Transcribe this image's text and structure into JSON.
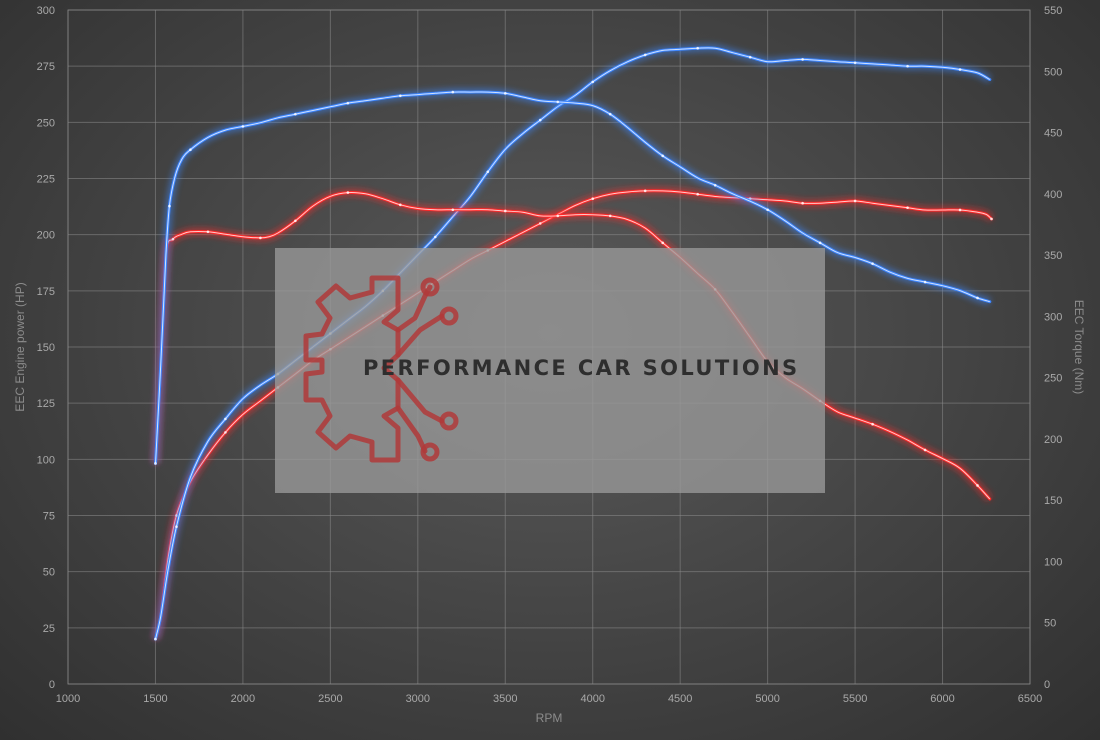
{
  "colors": {
    "tuned": "#ff2a2a",
    "stock": "#3d86ff",
    "watermark_box": "#9a9a9a",
    "watermark_gear": "#b03a3a"
  },
  "watermark": {
    "text": "PERFORMANCE CAR SOLUTIONS"
  },
  "chart_data": {
    "type": "line",
    "title": "",
    "xlabel": "RPM",
    "ylabel_left": "EEC Engine power (HP)",
    "ylabel_right": "EEC Torque (Nm)",
    "xlim": [
      1000,
      6500
    ],
    "ylim_left": [
      0,
      300
    ],
    "ylim_right": [
      0,
      550
    ],
    "grid": true,
    "x_ticks": [
      1000,
      1500,
      2000,
      2500,
      3000,
      3500,
      4000,
      4500,
      5000,
      5500,
      6000,
      6500
    ],
    "y_left_ticks": [
      0,
      25,
      50,
      75,
      100,
      125,
      150,
      175,
      200,
      225,
      250,
      275,
      300
    ],
    "y_right_ticks": [
      0,
      50,
      100,
      150,
      200,
      250,
      300,
      350,
      400,
      450,
      500,
      550
    ],
    "series": [
      {
        "id": "power_tuned",
        "axis": "left",
        "color": "#ff2a2a",
        "points": [
          [
            1500,
            20
          ],
          [
            1530,
            30
          ],
          [
            1570,
            55
          ],
          [
            1620,
            75
          ],
          [
            1700,
            90
          ],
          [
            1800,
            102
          ],
          [
            1900,
            112
          ],
          [
            2000,
            120
          ],
          [
            2100,
            126
          ],
          [
            2200,
            132
          ],
          [
            2300,
            138
          ],
          [
            2400,
            144
          ],
          [
            2500,
            149
          ],
          [
            2600,
            154
          ],
          [
            2700,
            159
          ],
          [
            2800,
            164
          ],
          [
            2900,
            169
          ],
          [
            3000,
            174
          ],
          [
            3100,
            179
          ],
          [
            3200,
            184
          ],
          [
            3300,
            189
          ],
          [
            3400,
            193
          ],
          [
            3500,
            197
          ],
          [
            3600,
            201
          ],
          [
            3700,
            205
          ],
          [
            3800,
            209
          ],
          [
            3900,
            213
          ],
          [
            4000,
            216
          ],
          [
            4100,
            218
          ],
          [
            4200,
            219
          ],
          [
            4300,
            219.5
          ],
          [
            4400,
            219.5
          ],
          [
            4500,
            219
          ],
          [
            4600,
            218
          ],
          [
            4700,
            217
          ],
          [
            4800,
            216.5
          ],
          [
            4900,
            216
          ],
          [
            5000,
            215.5
          ],
          [
            5100,
            215
          ],
          [
            5200,
            214
          ],
          [
            5300,
            214
          ],
          [
            5400,
            214.5
          ],
          [
            5500,
            215
          ],
          [
            5600,
            214
          ],
          [
            5700,
            213
          ],
          [
            5800,
            212
          ],
          [
            5900,
            211
          ],
          [
            6000,
            211
          ],
          [
            6100,
            211
          ],
          [
            6200,
            210
          ],
          [
            6250,
            209
          ],
          [
            6280,
            207
          ]
        ]
      },
      {
        "id": "power_stock",
        "axis": "left",
        "color": "#3d86ff",
        "points": [
          [
            1500,
            20
          ],
          [
            1530,
            30
          ],
          [
            1570,
            50
          ],
          [
            1620,
            70
          ],
          [
            1700,
            92
          ],
          [
            1800,
            108
          ],
          [
            1900,
            118
          ],
          [
            2000,
            127
          ],
          [
            2100,
            133
          ],
          [
            2200,
            138
          ],
          [
            2300,
            144
          ],
          [
            2400,
            150
          ],
          [
            2500,
            156
          ],
          [
            2600,
            162
          ],
          [
            2700,
            168
          ],
          [
            2800,
            175
          ],
          [
            2900,
            183
          ],
          [
            3000,
            191
          ],
          [
            3100,
            199
          ],
          [
            3200,
            208
          ],
          [
            3300,
            217
          ],
          [
            3400,
            228
          ],
          [
            3500,
            238
          ],
          [
            3600,
            245
          ],
          [
            3700,
            251
          ],
          [
            3800,
            257
          ],
          [
            3900,
            262
          ],
          [
            4000,
            268
          ],
          [
            4100,
            273
          ],
          [
            4200,
            277
          ],
          [
            4300,
            280
          ],
          [
            4400,
            282
          ],
          [
            4500,
            282.5
          ],
          [
            4600,
            283
          ],
          [
            4700,
            283
          ],
          [
            4800,
            281
          ],
          [
            4900,
            279
          ],
          [
            5000,
            277
          ],
          [
            5100,
            277.5
          ],
          [
            5200,
            278
          ],
          [
            5300,
            277.5
          ],
          [
            5400,
            277
          ],
          [
            5500,
            276.5
          ],
          [
            5600,
            276
          ],
          [
            5700,
            275.5
          ],
          [
            5800,
            275
          ],
          [
            5900,
            275
          ],
          [
            6000,
            274.5
          ],
          [
            6100,
            273.5
          ],
          [
            6200,
            272
          ],
          [
            6270,
            269
          ]
        ]
      },
      {
        "id": "torque_tuned",
        "axis": "right",
        "color": "#ff2a2a",
        "points": [
          [
            1500,
            180
          ],
          [
            1530,
            260
          ],
          [
            1560,
            350
          ],
          [
            1600,
            363
          ],
          [
            1650,
            367
          ],
          [
            1700,
            369
          ],
          [
            1800,
            369
          ],
          [
            1900,
            367
          ],
          [
            2000,
            365
          ],
          [
            2100,
            364
          ],
          [
            2150,
            365
          ],
          [
            2200,
            368
          ],
          [
            2300,
            378
          ],
          [
            2400,
            390
          ],
          [
            2500,
            398
          ],
          [
            2600,
            401
          ],
          [
            2700,
            400
          ],
          [
            2800,
            396
          ],
          [
            2900,
            391
          ],
          [
            3000,
            388
          ],
          [
            3100,
            387
          ],
          [
            3200,
            387
          ],
          [
            3300,
            387
          ],
          [
            3400,
            387
          ],
          [
            3500,
            386
          ],
          [
            3600,
            385
          ],
          [
            3700,
            382
          ],
          [
            3800,
            382
          ],
          [
            3900,
            383
          ],
          [
            4000,
            383
          ],
          [
            4100,
            382
          ],
          [
            4200,
            379
          ],
          [
            4300,
            372
          ],
          [
            4400,
            360
          ],
          [
            4500,
            348
          ],
          [
            4600,
            335
          ],
          [
            4700,
            322
          ],
          [
            4800,
            303
          ],
          [
            4900,
            283
          ],
          [
            5000,
            263
          ],
          [
            5100,
            250
          ],
          [
            5200,
            241
          ],
          [
            5300,
            231
          ],
          [
            5400,
            222
          ],
          [
            5500,
            217
          ],
          [
            5600,
            212
          ],
          [
            5700,
            206
          ],
          [
            5800,
            199
          ],
          [
            5900,
            191
          ],
          [
            6000,
            184
          ],
          [
            6100,
            176
          ],
          [
            6200,
            162
          ],
          [
            6270,
            151
          ]
        ]
      },
      {
        "id": "torque_stock",
        "axis": "right",
        "color": "#3d86ff",
        "points": [
          [
            1500,
            180
          ],
          [
            1530,
            260
          ],
          [
            1560,
            350
          ],
          [
            1580,
            390
          ],
          [
            1610,
            413
          ],
          [
            1650,
            428
          ],
          [
            1700,
            436
          ],
          [
            1800,
            446
          ],
          [
            1900,
            452
          ],
          [
            2000,
            455
          ],
          [
            2100,
            458
          ],
          [
            2200,
            462
          ],
          [
            2300,
            465
          ],
          [
            2400,
            468
          ],
          [
            2500,
            471
          ],
          [
            2600,
            474
          ],
          [
            2700,
            476
          ],
          [
            2800,
            478
          ],
          [
            2900,
            480
          ],
          [
            3000,
            481
          ],
          [
            3100,
            482
          ],
          [
            3200,
            483
          ],
          [
            3300,
            483
          ],
          [
            3400,
            483
          ],
          [
            3500,
            482
          ],
          [
            3600,
            479
          ],
          [
            3700,
            476
          ],
          [
            3800,
            475
          ],
          [
            3900,
            474
          ],
          [
            4000,
            472
          ],
          [
            4100,
            465
          ],
          [
            4200,
            454
          ],
          [
            4300,
            442
          ],
          [
            4400,
            431
          ],
          [
            4500,
            422
          ],
          [
            4600,
            413
          ],
          [
            4700,
            407
          ],
          [
            4800,
            400
          ],
          [
            4900,
            394
          ],
          [
            5000,
            387
          ],
          [
            5100,
            378
          ],
          [
            5200,
            368
          ],
          [
            5300,
            360
          ],
          [
            5400,
            352
          ],
          [
            5500,
            348
          ],
          [
            5600,
            343
          ],
          [
            5700,
            336
          ],
          [
            5800,
            331
          ],
          [
            5900,
            328
          ],
          [
            6000,
            325
          ],
          [
            6100,
            321
          ],
          [
            6200,
            315
          ],
          [
            6270,
            312
          ]
        ]
      }
    ]
  }
}
